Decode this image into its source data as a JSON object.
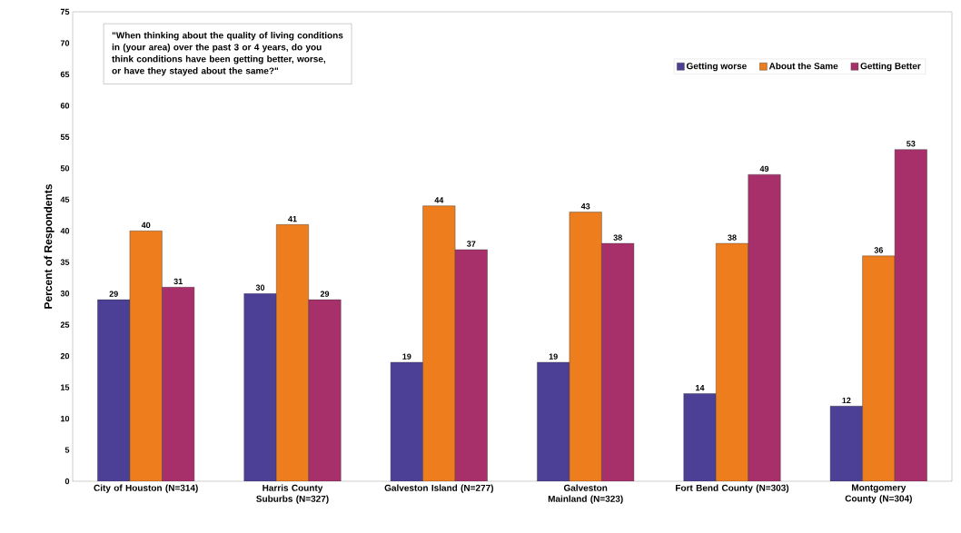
{
  "chart_data": {
    "type": "bar",
    "ylabel": "Percent of Respondents",
    "categories": [
      "City of Houston (N=314)",
      "Harris County Suburbs (N=327)",
      "Galveston Island (N=277)",
      "Galveston Mainland (N=323)",
      "Fort Bend County (N=303)",
      "Montgomery County (N=304)"
    ],
    "series": [
      {
        "name": "Getting worse",
        "color": "#4b3f96",
        "values": [
          29,
          30,
          19,
          19,
          14,
          12
        ]
      },
      {
        "name": "About the Same",
        "color": "#ee7d1e",
        "values": [
          40,
          41,
          44,
          43,
          38,
          36
        ]
      },
      {
        "name": "Getting Better",
        "color": "#a8306a",
        "values": [
          31,
          29,
          37,
          38,
          49,
          53
        ]
      }
    ],
    "ylim": [
      0,
      75
    ],
    "yticks": [
      0,
      5,
      10,
      15,
      20,
      25,
      30,
      35,
      40,
      45,
      50,
      55,
      60,
      65,
      70,
      75
    ],
    "data_labels": true,
    "legend": "top right",
    "grid": false,
    "annotations": [
      "\"When thinking about the quality of living conditions in (your area) over the past 3 or 4 years, do you think conditions have been getting better, worse, or have they stayed about the same?\""
    ]
  }
}
